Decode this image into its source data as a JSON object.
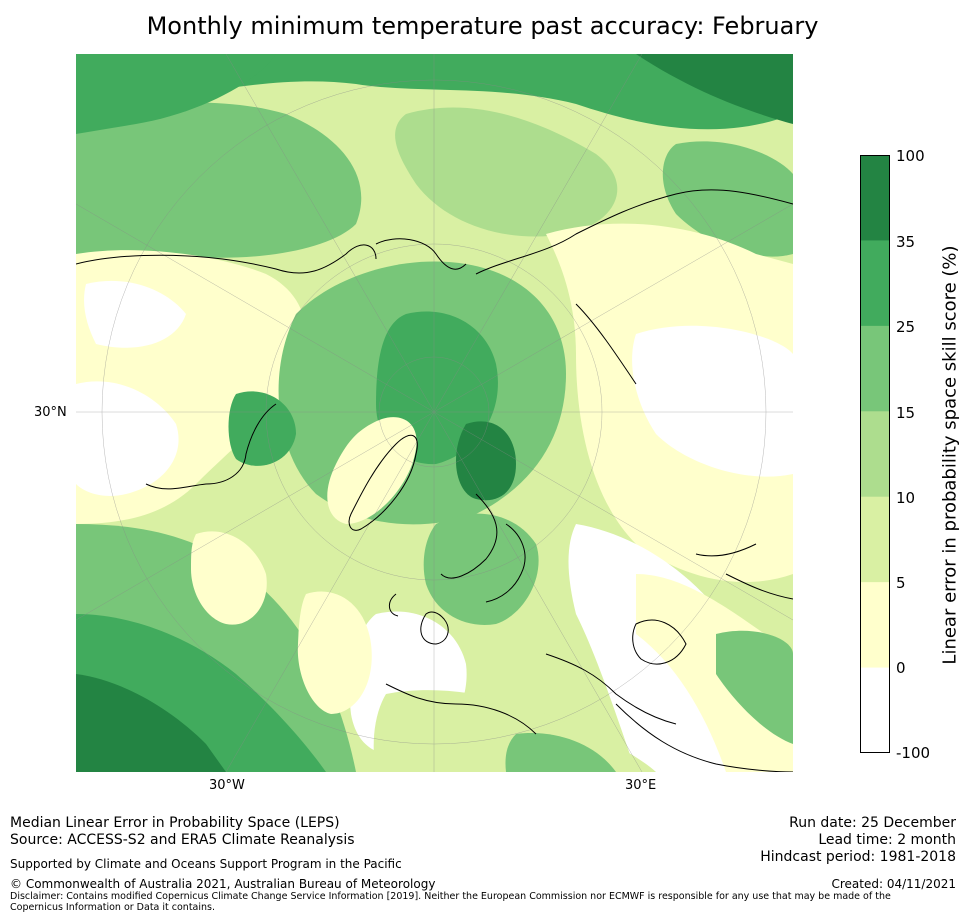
{
  "title": "Monthly minimum temperature past accuracy: February",
  "map": {
    "lat_label": "30°N",
    "lon_labels": [
      "30°W",
      "30°E"
    ],
    "colorbar": {
      "label": "Linear error in probability space skill score (%)",
      "ticks": [
        "100",
        "35",
        "25",
        "15",
        "10",
        "5",
        "0",
        "-100"
      ],
      "colors": [
        "#238443",
        "#41ab5d",
        "#78c679",
        "#addd8e",
        "#d9f0a3",
        "#ffffcc",
        "#ffffff"
      ]
    }
  },
  "footer": {
    "left_line1": "Median Linear Error in Probability Space (LEPS)",
    "left_line2": "Source: ACCESS-S2 and ERA5 Climate Reanalysis",
    "support": "Supported by Climate and Oceans Support Program in the Pacific",
    "copyright": "© Commonwealth of Australia 2021, Australian Bureau of Meteorology",
    "run_date": "Run date: 25 December",
    "lead_time": "Lead time: 2 month",
    "hindcast": "Hindcast period: 1981-2018",
    "created": "Created: 04/11/2021",
    "disclaimer": "Disclaimer: Contains modified Copernicus Climate Change Service Information [2019]. Neither the European Commission nor ECMWF is responsible for any use that may be made of the Copernicus Information or Data it contains."
  }
}
